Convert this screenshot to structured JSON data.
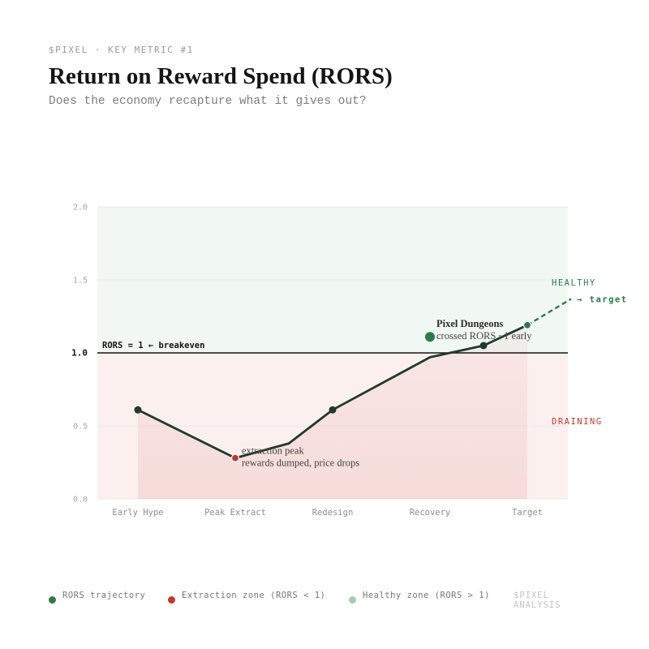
{
  "header": {
    "kicker": "$PIXEL · KEY METRIC #1",
    "title": "Return on Reward Spend (RORS)",
    "subtitle": "Does the economy recapture what it gives out?"
  },
  "colors": {
    "line": "#1e3a2c",
    "healthy": "#2d7a4b",
    "extraction": "#c0392b",
    "healthy_zone_fill": "#f1f8f3",
    "draining_zone_fill": "#fcf0ef",
    "legend_healthy": "#a9c9b2"
  },
  "chart_data": {
    "type": "line",
    "title": "Return on Reward Spend (RORS)",
    "xlabel": "",
    "ylabel": "",
    "categories": [
      "Early Hype",
      "Peak Extract",
      "Redesign",
      "Recovery",
      "Target"
    ],
    "ylim": [
      0,
      2.0
    ],
    "yticks": [
      "0.0",
      "0.5",
      "1.0",
      "1.5",
      "2.0"
    ],
    "series": [
      {
        "name": "RORS trajectory",
        "points": [
          {
            "x": 0.0,
            "y": 0.61,
            "marker": true
          },
          {
            "x": 1.0,
            "y": 0.28,
            "marker": true,
            "color": "extraction"
          },
          {
            "x": 1.55,
            "y": 0.38,
            "marker": false
          },
          {
            "x": 2.0,
            "y": 0.61,
            "marker": true
          },
          {
            "x": 3.0,
            "y": 0.97,
            "marker": false
          },
          {
            "x": 3.55,
            "y": 1.05,
            "marker": true
          },
          {
            "x": 4.0,
            "y": 1.19,
            "marker": true,
            "color": "healthy"
          }
        ]
      },
      {
        "name": "target",
        "style": "dashed",
        "points": [
          {
            "x": 4.0,
            "y": 1.19
          },
          {
            "x": 4.45,
            "y": 1.37
          }
        ],
        "label": "→ target"
      }
    ],
    "reference_line": {
      "y": 1.0,
      "label": "RORS = 1 ← breakeven"
    },
    "zones": [
      {
        "name": "HEALTHY",
        "from": 1.0,
        "to": 2.0
      },
      {
        "name": "DRAINING",
        "from": 0.0,
        "to": 1.0
      }
    ],
    "annotations": [
      {
        "x": 1.0,
        "y": 0.28,
        "title": "",
        "lines": [
          "extraction peak",
          "rewards dumped, price drops"
        ]
      },
      {
        "x": 3.0,
        "y": 1.11,
        "title": "Pixel Dungeons",
        "lines": [
          "crossed RORS ~1 early"
        ]
      }
    ],
    "grid": true,
    "legend_position": "bottom"
  },
  "legend": {
    "items": [
      {
        "label": "RORS trajectory",
        "color": "#2d7a4b"
      },
      {
        "label": "Extraction zone (RORS < 1)",
        "color": "#c0392b"
      },
      {
        "label": "Healthy zone (RORS > 1)",
        "color": "#a9c9b2"
      }
    ],
    "source": "$PIXEL ANALYSIS"
  }
}
